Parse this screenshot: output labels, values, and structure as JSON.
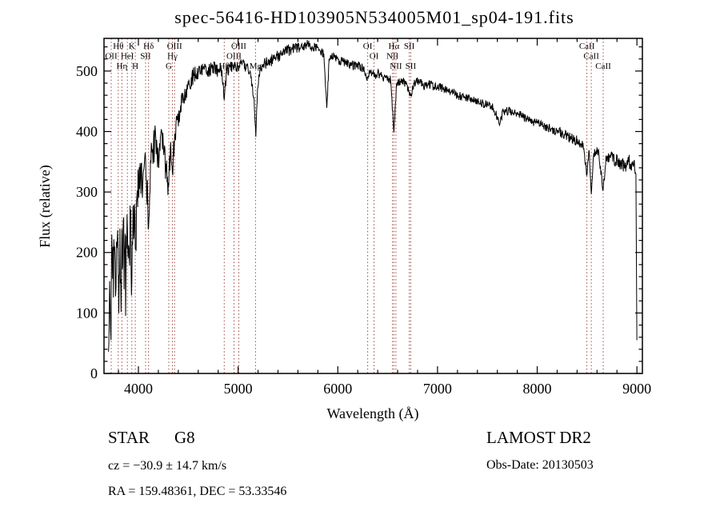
{
  "title": "spec-56416-HD103905N534005M01_sp04-191.fits",
  "colors": {
    "background": "#ffffff",
    "spectrum": "#000000",
    "axis": "#000000",
    "line_marker": "#9a4a42",
    "label_text": "#1a1a1a"
  },
  "chart_data": {
    "type": "line",
    "title": "spec-56416-HD103905N534005M01_sp04-191.fits",
    "xlabel": "Wavelength (Å)",
    "ylabel": "Flux (relative)",
    "xlim": [
      3655,
      9055
    ],
    "ylim": [
      0,
      554
    ],
    "xticks": [
      4000,
      5000,
      6000,
      7000,
      8000,
      9000
    ],
    "yticks": [
      0,
      100,
      200,
      300,
      400,
      500
    ],
    "x_minor_step": 200,
    "y_minor_step": 20,
    "grid": false,
    "legend": "none",
    "spectral_lines": [
      {
        "wavelength": 3727,
        "label": "OII",
        "row": 1
      },
      {
        "wavelength": 3798,
        "label": "Hθ",
        "row": 0
      },
      {
        "wavelength": 3835,
        "label": "Hη",
        "row": 2
      },
      {
        "wavelength": 3889,
        "label": "HeI",
        "row": 1
      },
      {
        "wavelength": 3934,
        "label": "K",
        "row": 0
      },
      {
        "wavelength": 3969,
        "label": "H",
        "row": 2
      },
      {
        "wavelength": 4072,
        "label": "SII",
        "row": 1
      },
      {
        "wavelength": 4102,
        "label": "Hδ",
        "row": 0
      },
      {
        "wavelength": 4305,
        "label": "G",
        "row": 2
      },
      {
        "wavelength": 4341,
        "label": "Hγ",
        "row": 1
      },
      {
        "wavelength": 4363,
        "label": "OIII",
        "row": 0
      },
      {
        "wavelength": 4861,
        "label": "Hβ",
        "row": 2
      },
      {
        "wavelength": 4959,
        "label": "OIII",
        "row": 1
      },
      {
        "wavelength": 5007,
        "label": "OIII",
        "row": 0
      },
      {
        "wavelength": 5175,
        "label": "Mg",
        "row": 2
      },
      {
        "wavelength": 6300,
        "label": "OI",
        "row": 0
      },
      {
        "wavelength": 6363,
        "label": "OI",
        "row": 1
      },
      {
        "wavelength": 6548,
        "label": "NII",
        "row": 1
      },
      {
        "wavelength": 6563,
        "label": "Hα",
        "row": 0
      },
      {
        "wavelength": 6583,
        "label": "NII",
        "row": 2
      },
      {
        "wavelength": 6717,
        "label": "SII",
        "row": 0
      },
      {
        "wavelength": 6731,
        "label": "SII",
        "row": 2
      },
      {
        "wavelength": 8498,
        "label": "CaII",
        "row": 0
      },
      {
        "wavelength": 8542,
        "label": "CaII",
        "row": 1
      },
      {
        "wavelength": 8662,
        "label": "CaII",
        "row": 2
      }
    ],
    "spectrum_anchors": [
      [
        3700,
        30,
        25
      ],
      [
        3712,
        140,
        80
      ],
      [
        3725,
        70,
        70
      ],
      [
        3737,
        190,
        85
      ],
      [
        3750,
        110,
        80
      ],
      [
        3762,
        220,
        80
      ],
      [
        3775,
        130,
        85
      ],
      [
        3788,
        210,
        80
      ],
      [
        3800,
        150,
        85
      ],
      [
        3815,
        230,
        75
      ],
      [
        3830,
        150,
        80
      ],
      [
        3845,
        240,
        70
      ],
      [
        3860,
        190,
        70
      ],
      [
        3875,
        150,
        70
      ],
      [
        3890,
        240,
        65
      ],
      [
        3905,
        200,
        60
      ],
      [
        3920,
        250,
        55
      ],
      [
        3934,
        160,
        55
      ],
      [
        3950,
        280,
        50
      ],
      [
        3969,
        200,
        50
      ],
      [
        3985,
        300,
        45
      ],
      [
        4000,
        310,
        45
      ],
      [
        4020,
        330,
        40
      ],
      [
        4040,
        300,
        40
      ],
      [
        4060,
        340,
        35
      ],
      [
        4080,
        320,
        35
      ],
      [
        4102,
        250,
        35
      ],
      [
        4125,
        350,
        30
      ],
      [
        4150,
        370,
        30
      ],
      [
        4175,
        390,
        28
      ],
      [
        4200,
        360,
        30
      ],
      [
        4225,
        390,
        26
      ],
      [
        4250,
        370,
        28
      ],
      [
        4275,
        340,
        30
      ],
      [
        4300,
        320,
        28
      ],
      [
        4320,
        370,
        24
      ],
      [
        4341,
        330,
        24
      ],
      [
        4365,
        395,
        22
      ],
      [
        4390,
        415,
        20
      ],
      [
        4420,
        435,
        18
      ],
      [
        4450,
        455,
        18
      ],
      [
        4480,
        470,
        16
      ],
      [
        4510,
        480,
        15
      ],
      [
        4550,
        492,
        14
      ],
      [
        4600,
        500,
        13
      ],
      [
        4650,
        504,
        12
      ],
      [
        4700,
        500,
        12
      ],
      [
        4750,
        506,
        12
      ],
      [
        4800,
        500,
        11
      ],
      [
        4830,
        506,
        10
      ],
      [
        4861,
        452,
        9
      ],
      [
        4885,
        500,
        10
      ],
      [
        4920,
        506,
        10
      ],
      [
        4960,
        512,
        10
      ],
      [
        5000,
        506,
        10
      ],
      [
        5040,
        512,
        10
      ],
      [
        5080,
        506,
        10
      ],
      [
        5120,
        500,
        10
      ],
      [
        5160,
        455,
        8
      ],
      [
        5178,
        392,
        6
      ],
      [
        5195,
        470,
        9
      ],
      [
        5220,
        505,
        10
      ],
      [
        5270,
        512,
        10
      ],
      [
        5320,
        516,
        10
      ],
      [
        5370,
        522,
        10
      ],
      [
        5420,
        526,
        10
      ],
      [
        5470,
        531,
        10
      ],
      [
        5520,
        536,
        10
      ],
      [
        5570,
        540,
        9
      ],
      [
        5620,
        536,
        9
      ],
      [
        5670,
        541,
        9
      ],
      [
        5720,
        544,
        9
      ],
      [
        5770,
        539,
        9
      ],
      [
        5820,
        534,
        8
      ],
      [
        5860,
        528,
        8
      ],
      [
        5890,
        438,
        5
      ],
      [
        5912,
        518,
        8
      ],
      [
        5950,
        524,
        8
      ],
      [
        6000,
        519,
        8
      ],
      [
        6050,
        515,
        8
      ],
      [
        6100,
        514,
        8
      ],
      [
        6150,
        510,
        8
      ],
      [
        6200,
        509,
        8
      ],
      [
        6250,
        505,
        8
      ],
      [
        6300,
        488,
        7
      ],
      [
        6330,
        500,
        7
      ],
      [
        6363,
        492,
        7
      ],
      [
        6400,
        496,
        7
      ],
      [
        6450,
        490,
        7
      ],
      [
        6500,
        489,
        7
      ],
      [
        6530,
        485,
        7
      ],
      [
        6563,
        398,
        5
      ],
      [
        6590,
        478,
        7
      ],
      [
        6640,
        484,
        7
      ],
      [
        6690,
        479,
        7
      ],
      [
        6717,
        462,
        6
      ],
      [
        6731,
        458,
        6
      ],
      [
        6765,
        480,
        7
      ],
      [
        6810,
        484,
        7
      ],
      [
        6860,
        476,
        7
      ],
      [
        6910,
        479,
        7
      ],
      [
        6960,
        474,
        7
      ],
      [
        7010,
        474,
        7
      ],
      [
        7060,
        470,
        7
      ],
      [
        7110,
        469,
        7
      ],
      [
        7160,
        464,
        7
      ],
      [
        7210,
        460,
        8
      ],
      [
        7260,
        456,
        7
      ],
      [
        7310,
        455,
        7
      ],
      [
        7360,
        451,
        7
      ],
      [
        7410,
        450,
        7
      ],
      [
        7460,
        446,
        7
      ],
      [
        7510,
        444,
        7
      ],
      [
        7560,
        440,
        7
      ],
      [
        7605,
        420,
        8
      ],
      [
        7630,
        416,
        7
      ],
      [
        7660,
        434,
        7
      ],
      [
        7710,
        434,
        7
      ],
      [
        7760,
        430,
        7
      ],
      [
        7810,
        429,
        7
      ],
      [
        7860,
        424,
        7
      ],
      [
        7910,
        420,
        7
      ],
      [
        7960,
        416,
        7
      ],
      [
        8010,
        414,
        7
      ],
      [
        8060,
        410,
        7
      ],
      [
        8110,
        406,
        8
      ],
      [
        8160,
        404,
        8
      ],
      [
        8210,
        400,
        8
      ],
      [
        8260,
        396,
        9
      ],
      [
        8310,
        391,
        9
      ],
      [
        8360,
        389,
        9
      ],
      [
        8410,
        384,
        9
      ],
      [
        8460,
        379,
        9
      ],
      [
        8498,
        328,
        7
      ],
      [
        8520,
        368,
        8
      ],
      [
        8542,
        298,
        7
      ],
      [
        8568,
        364,
        8
      ],
      [
        8615,
        368,
        9
      ],
      [
        8662,
        303,
        7
      ],
      [
        8690,
        358,
        9
      ],
      [
        8735,
        358,
        10
      ],
      [
        8785,
        352,
        11
      ],
      [
        8835,
        348,
        12
      ],
      [
        8880,
        342,
        12
      ],
      [
        8915,
        354,
        12
      ],
      [
        8945,
        338,
        11
      ],
      [
        8970,
        350,
        9
      ],
      [
        8990,
        330,
        8
      ],
      [
        9000,
        55,
        4
      ]
    ]
  },
  "footer": {
    "class_label": "STAR",
    "subclass_label": "G8",
    "survey": "LAMOST DR2",
    "cz": "cz = −30.9 ± 14.7 km/s",
    "obs_date": "Obs-Date: 20130503",
    "coords": "RA = 159.48361, DEC =  53.33546"
  }
}
